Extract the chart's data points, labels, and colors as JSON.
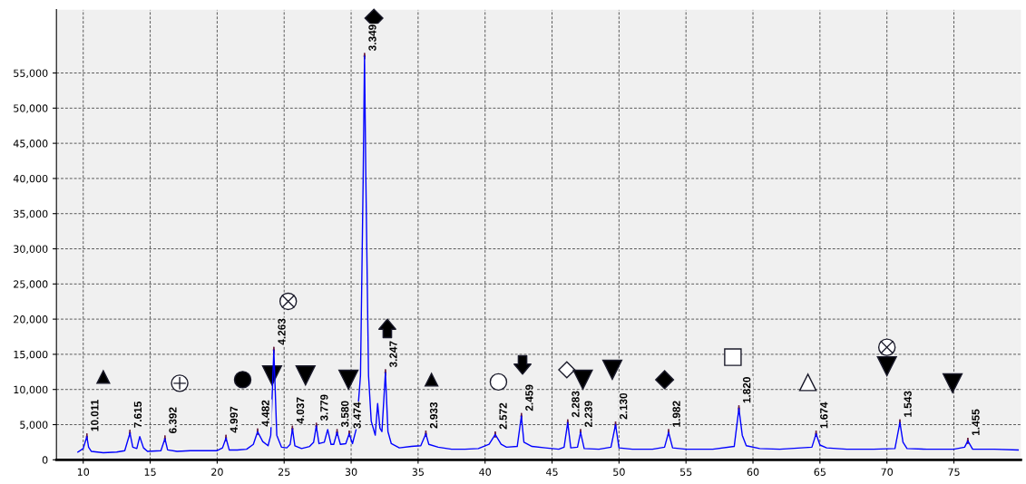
{
  "chart_data": {
    "type": "line",
    "xlim": [
      8,
      80
    ],
    "ylim": [
      0,
      64000
    ],
    "xticks": [
      10,
      15,
      20,
      25,
      30,
      35,
      40,
      45,
      50,
      55,
      60,
      65,
      70,
      75
    ],
    "yticks": [
      0,
      {
        "value": 5000,
        "label": "5,000"
      },
      {
        "value": 10000,
        "label": "10,000"
      },
      {
        "value": 15000,
        "label": "15,000"
      },
      {
        "value": 20000,
        "label": "20,000"
      },
      {
        "value": 25000,
        "label": "25,000"
      },
      {
        "value": 30000,
        "label": "30,000"
      },
      {
        "value": 35000,
        "label": "35,000"
      },
      {
        "value": 40000,
        "label": "40,000"
      },
      {
        "value": 45000,
        "label": "45,000"
      },
      {
        "value": 50000,
        "label": "50,000"
      },
      {
        "value": 55000,
        "label": "55,000"
      }
    ],
    "grid": true,
    "legend": false,
    "series": [
      {
        "color": "#0000ff",
        "x": [
          9.6,
          10.0,
          10.27,
          10.4,
          10.6,
          11.5,
          12.5,
          13.1,
          13.49,
          13.7,
          14.0,
          14.22,
          14.5,
          14.8,
          15.8,
          16.1,
          16.3,
          17,
          18,
          19,
          20.0,
          20.4,
          20.66,
          20.9,
          21.5,
          22.2,
          22.7,
          23.02,
          23.4,
          23.8,
          24.0,
          24.23,
          24.45,
          24.8,
          25.2,
          25.45,
          25.62,
          25.8,
          26.3,
          26.9,
          27.2,
          27.4,
          27.6,
          28.0,
          28.25,
          28.5,
          28.7,
          28.95,
          29.2,
          29.6,
          29.86,
          30.1,
          30.4,
          30.7,
          30.9,
          31.0,
          31.1,
          31.3,
          31.5,
          31.8,
          31.98,
          32.15,
          32.3,
          32.56,
          32.75,
          33.0,
          33.6,
          34.5,
          35.2,
          35.58,
          35.8,
          36.5,
          37.5,
          38.5,
          39.5,
          40.3,
          40.76,
          41.2,
          41.6,
          42.4,
          42.71,
          42.9,
          43.5,
          44.5,
          45.5,
          45.9,
          46.17,
          46.4,
          46.9,
          47.13,
          47.4,
          48.5,
          49.4,
          49.74,
          50.0,
          51,
          52.5,
          53.4,
          53.7,
          54.0,
          55,
          57,
          58.6,
          58.95,
          59.2,
          59.5,
          60.5,
          62,
          64.4,
          64.71,
          65.0,
          65.5,
          67,
          69,
          70.6,
          70.97,
          71.2,
          71.5,
          73,
          75,
          75.8,
          76.04,
          76.4,
          78,
          79.8
        ],
        "values": [
          1100,
          1600,
          3300,
          1800,
          1200,
          1000,
          1100,
          1300,
          3800,
          1800,
          1600,
          3300,
          1700,
          1200,
          1300,
          3000,
          1400,
          1200,
          1300,
          1300,
          1300,
          1700,
          3100,
          1400,
          1400,
          1500,
          2200,
          4000,
          2600,
          2000,
          3500,
          15600,
          3500,
          1800,
          1700,
          2200,
          4400,
          2000,
          1600,
          1900,
          2500,
          4800,
          2300,
          2500,
          4300,
          2200,
          2200,
          3900,
          2200,
          2300,
          3700,
          2300,
          4500,
          12000,
          40000,
          57400,
          40000,
          12000,
          5500,
          3500,
          8000,
          4500,
          4000,
          12400,
          4000,
          2300,
          1700,
          1900,
          2000,
          3700,
          2200,
          1800,
          1500,
          1500,
          1600,
          2200,
          3600,
          2200,
          1800,
          1900,
          6200,
          2500,
          1900,
          1700,
          1500,
          1800,
          5300,
          1700,
          1800,
          3900,
          1600,
          1500,
          1800,
          5000,
          1700,
          1500,
          1500,
          1800,
          3900,
          1700,
          1500,
          1500,
          1900,
          7300,
          3500,
          2000,
          1600,
          1500,
          1800,
          3700,
          2100,
          1700,
          1500,
          1500,
          1600,
          5300,
          2500,
          1600,
          1500,
          1500,
          1800,
          2700,
          1500,
          1500,
          1400
        ]
      }
    ],
    "annotations": [
      {
        "text": "10.011",
        "x": 10.27,
        "y": 3300
      },
      {
        "text": "7.615",
        "x": 13.49,
        "y": 3800
      },
      {
        "text": "6.392",
        "x": 16.1,
        "y": 3000
      },
      {
        "text": "4.997",
        "x": 20.66,
        "y": 3100
      },
      {
        "text": "4.482",
        "x": 23.02,
        "y": 4000
      },
      {
        "text": "4.263",
        "x": 24.23,
        "y": 15600
      },
      {
        "text": "4.037",
        "x": 25.62,
        "y": 4400
      },
      {
        "text": "3.779",
        "x": 27.4,
        "y": 4800
      },
      {
        "text": "3.580",
        "x": 28.95,
        "y": 3900
      },
      {
        "text": "3.474",
        "x": 29.86,
        "y": 3700
      },
      {
        "text": "3.349",
        "x": 31.0,
        "y": 57400
      },
      {
        "text": "3.247",
        "x": 32.56,
        "y": 12400
      },
      {
        "text": "2.933",
        "x": 35.58,
        "y": 3700
      },
      {
        "text": "2.572",
        "x": 40.76,
        "y": 3600
      },
      {
        "text": "2.459",
        "x": 42.71,
        "y": 6200
      },
      {
        "text": "2.283",
        "x": 46.17,
        "y": 5300
      },
      {
        "text": "2.239",
        "x": 47.13,
        "y": 3900
      },
      {
        "text": "2.130",
        "x": 49.74,
        "y": 5000
      },
      {
        "text": "1.982",
        "x": 53.7,
        "y": 3900
      },
      {
        "text": "1.820",
        "x": 58.95,
        "y": 7300
      },
      {
        "text": "1.674",
        "x": 64.71,
        "y": 3700
      },
      {
        "text": "1.543",
        "x": 70.97,
        "y": 5300
      },
      {
        "text": "1.455",
        "x": 76.04,
        "y": 2700
      }
    ]
  }
}
